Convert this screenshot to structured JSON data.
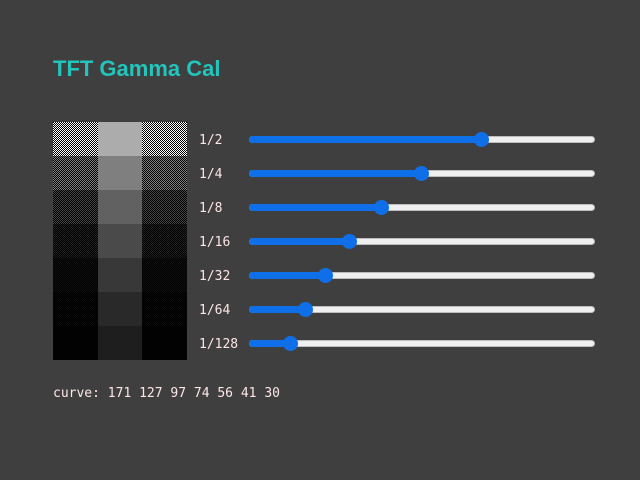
{
  "title": "TFT Gamma Cal",
  "calibration": [
    {
      "label": "1/2",
      "value": 171,
      "swatch": "#acacac"
    },
    {
      "label": "1/4",
      "value": 127,
      "swatch": "#7f7f7f"
    },
    {
      "label": "1/8",
      "value": 97,
      "swatch": "#616161"
    },
    {
      "label": "1/16",
      "value": 74,
      "swatch": "#4a4a4a"
    },
    {
      "label": "1/32",
      "value": 56,
      "swatch": "#383838"
    },
    {
      "label": "1/64",
      "value": 41,
      "swatch": "#292929"
    },
    {
      "label": "1/128",
      "value": 30,
      "swatch": "#1e1e1e"
    }
  ],
  "slider_max": 255,
  "curve_text": "curve: 171 127 97 74 56 41 30",
  "colors": {
    "background": "#3f3f3f",
    "title": "#22c4bc",
    "accent": "#0f6fe8",
    "track": "#efefef",
    "text": "#ffe6e6"
  }
}
